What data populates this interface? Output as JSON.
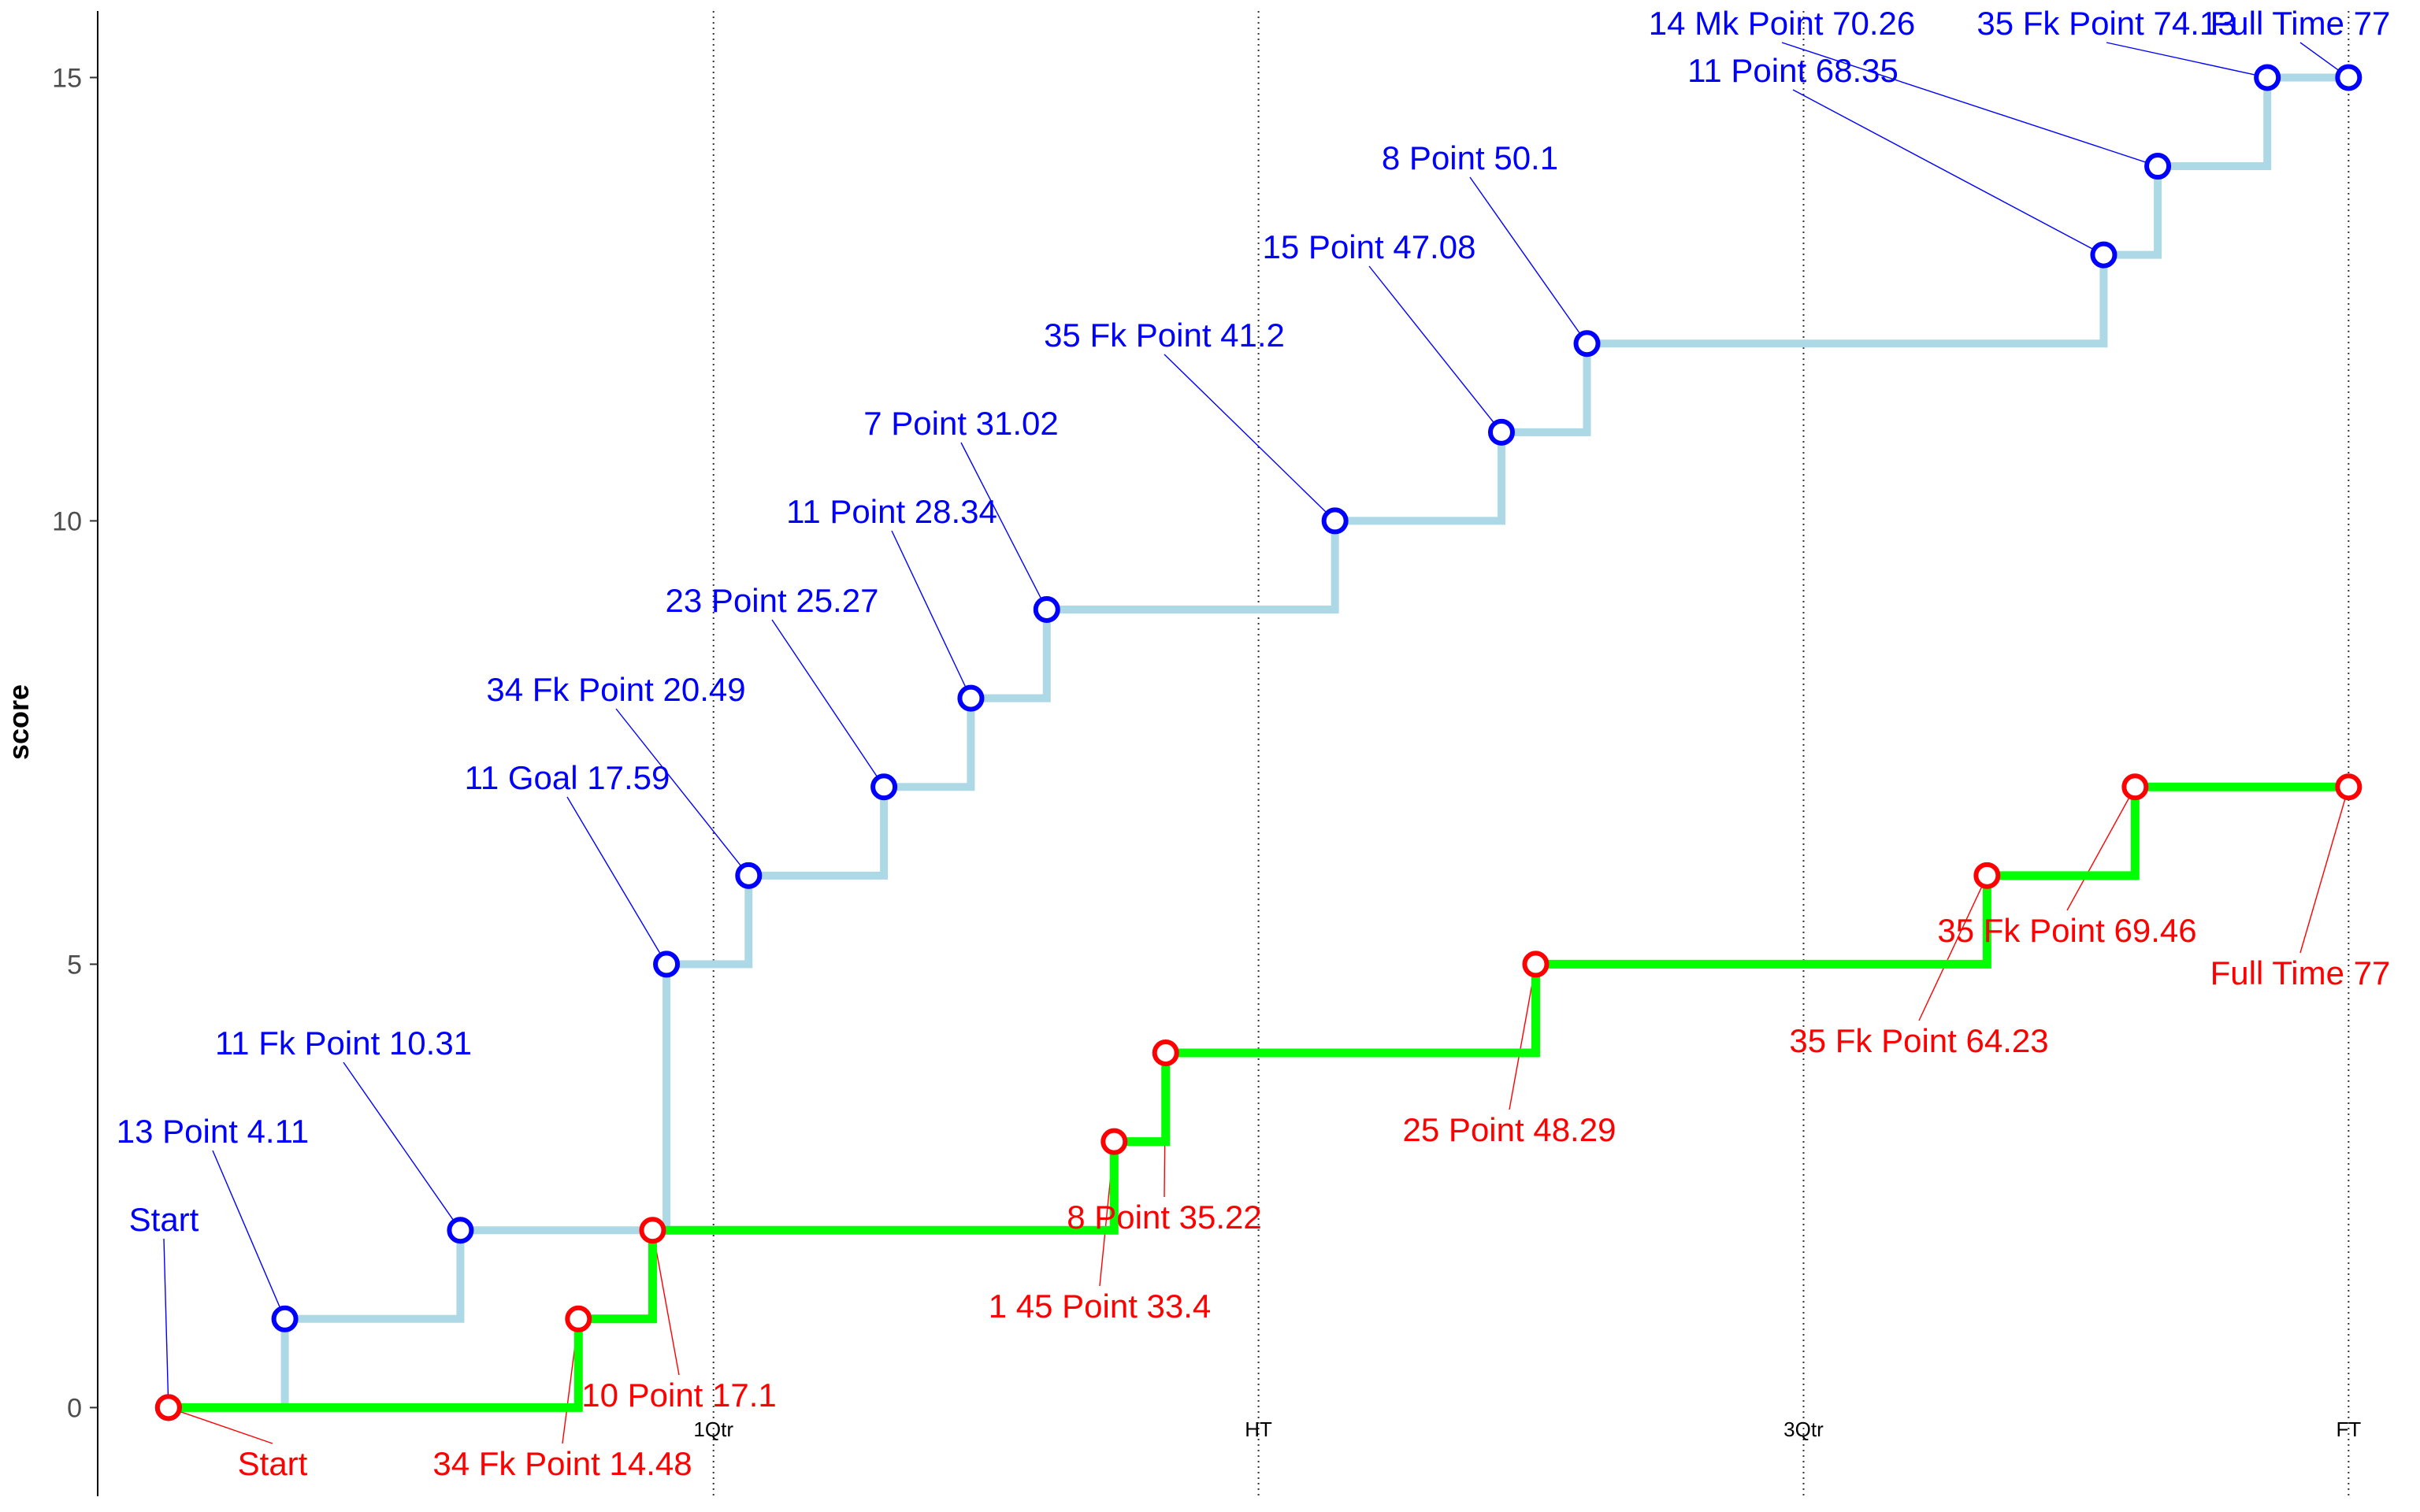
{
  "chart_data": {
    "type": "line",
    "step": true,
    "title": "",
    "xlabel": "",
    "ylabel": "score",
    "xlim": [
      -2.5,
      79.3
    ],
    "ylim": [
      -1,
      15.75
    ],
    "y_ticks": [
      0,
      5,
      10,
      15
    ],
    "grid": false,
    "quarter_lines": [
      {
        "x": 19.25,
        "label": "1Qtr"
      },
      {
        "x": 38.5,
        "label": "HT"
      },
      {
        "x": 57.75,
        "label": "3Qtr"
      },
      {
        "x": 77,
        "label": "FT"
      }
    ],
    "series": [
      {
        "line_color": "#ADD8E6",
        "marker_color": "#0000FF",
        "points": [
          {
            "x": 0,
            "y": 0,
            "label": "Start"
          },
          {
            "x": 4.11,
            "y": 1,
            "label": "13 Point 4.11"
          },
          {
            "x": 10.31,
            "y": 2,
            "label": "11 Fk Point 10.31"
          },
          {
            "x": 17.59,
            "y": 5,
            "label": "11 Goal 17.59"
          },
          {
            "x": 20.49,
            "y": 6,
            "label": "34 Fk Point 20.49"
          },
          {
            "x": 25.27,
            "y": 7,
            "label": "23 Point 25.27"
          },
          {
            "x": 28.34,
            "y": 8,
            "label": "11 Point 28.34"
          },
          {
            "x": 31.02,
            "y": 9,
            "label": "7 Point 31.02"
          },
          {
            "x": 41.2,
            "y": 10,
            "label": "35 Fk Point 41.2"
          },
          {
            "x": 47.08,
            "y": 11,
            "label": "15 Point 47.08"
          },
          {
            "x": 50.1,
            "y": 12,
            "label": "8 Point 50.1"
          },
          {
            "x": 68.35,
            "y": 13,
            "label": "11 Point 68.35"
          },
          {
            "x": 70.26,
            "y": 14,
            "label": "14 Mk Point 70.26"
          },
          {
            "x": 74.13,
            "y": 15,
            "label": "35 Fk Point 74.13"
          },
          {
            "x": 77,
            "y": 15,
            "label": "Full Time 77"
          }
        ]
      },
      {
        "line_color": "#00FF00",
        "marker_color": "#FF0000",
        "points": [
          {
            "x": 0,
            "y": 0,
            "label": "Start"
          },
          {
            "x": 14.48,
            "y": 1,
            "label": "34 Fk Point 14.48"
          },
          {
            "x": 17.1,
            "y": 2,
            "label": "10 Point 17.1"
          },
          {
            "x": 33.4,
            "y": 3,
            "label": "1 45 Point 33.4"
          },
          {
            "x": 35.22,
            "y": 4,
            "label": "8 Point 35.22"
          },
          {
            "x": 48.29,
            "y": 5,
            "label": "25 Point 48.29"
          },
          {
            "x": 64.23,
            "y": 6,
            "label": "35 Fk Point 64.23"
          },
          {
            "x": 69.46,
            "y": 7,
            "label": "35 Fk Point 69.46"
          },
          {
            "x": 77,
            "y": 7,
            "label": "Full Time 77"
          }
        ]
      }
    ]
  }
}
